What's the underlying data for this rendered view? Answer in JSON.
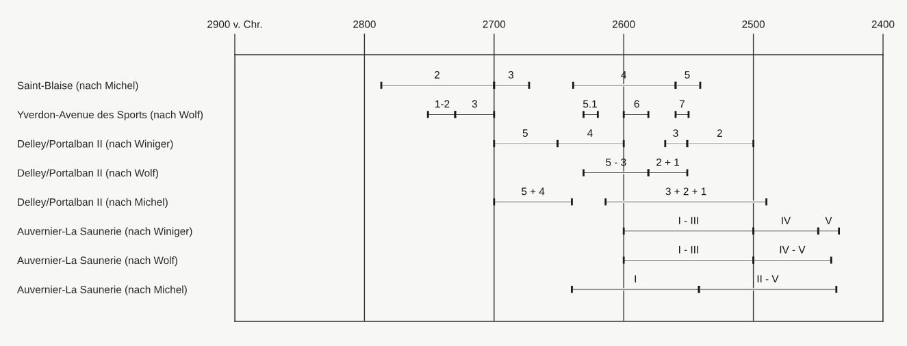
{
  "chart_data": {
    "type": "bar",
    "orientation": "horizontal",
    "categories": [
      "Saint-Blaise (nach Michel)",
      "Yverdon-Avenue des Sports (nach Wolf)",
      "Delley/Portalban II (nach Winiger)",
      "Delley/Portalban II (nach Wolf)",
      "Delley/Portalban II (nach Michel)",
      "Auvernier-La Saunerie (nach Winiger)",
      "Auvernier-La Saunerie (nach Wolf)",
      "Auvernier-La Saunerie (nach Michel)"
    ],
    "series": [
      {
        "color": "#1a1a1a",
        "base": [
          2700,
          2730,
          2651,
          2581,
          2640,
          2500,
          2500,
          2542
        ],
        "values": [
          87,
          21,
          49,
          50,
          60,
          100,
          100,
          98
        ]
      },
      {
        "color": "#1a1a1a",
        "base": [
          2673,
          2700,
          2600,
          2551,
          2490,
          2450,
          2440,
          2436
        ],
        "values": [
          27,
          30,
          51,
          30,
          124,
          50,
          60,
          106
        ]
      },
      {
        "color": "#1a1a1a",
        "base": [
          2560,
          2620,
          2551,
          null,
          null,
          2434,
          null,
          null
        ],
        "values": [
          79,
          11,
          17,
          null,
          null,
          16,
          null,
          null
        ]
      },
      {
        "color": "#1a1a1a",
        "base": [
          2541,
          2581,
          2500,
          null,
          null,
          null,
          null,
          null
        ],
        "values": [
          19,
          19,
          51,
          null,
          null,
          null,
          null,
          null
        ]
      },
      {
        "color": "#1a1a1a",
        "base": [
          null,
          2550,
          null,
          null,
          null,
          null,
          null,
          null
        ],
        "values": [
          null,
          10,
          null,
          null,
          null,
          null,
          null,
          null
        ]
      }
    ],
    "annotations": [
      {
        "text": "2",
        "x": 2744,
        "y": "Saint-Blaise (nach Michel)"
      },
      {
        "text": "3",
        "x": 2687,
        "y": "Saint-Blaise (nach Michel)"
      },
      {
        "text": "4",
        "x": 2600,
        "y": "Saint-Blaise (nach Michel)"
      },
      {
        "text": "5",
        "x": 2551,
        "y": "Saint-Blaise (nach Michel)"
      },
      {
        "text": "1-2",
        "x": 2740,
        "y": "Yverdon-Avenue des Sports (nach Wolf)"
      },
      {
        "text": "3",
        "x": 2715,
        "y": "Yverdon-Avenue des Sports (nach Wolf)"
      },
      {
        "text": "5.1",
        "x": 2626,
        "y": "Yverdon-Avenue des Sports (nach Wolf)"
      },
      {
        "text": "6",
        "x": 2590,
        "y": "Yverdon-Avenue des Sports (nach Wolf)"
      },
      {
        "text": "7",
        "x": 2555,
        "y": "Yverdon-Avenue des Sports (nach Wolf)"
      },
      {
        "text": "5",
        "x": 2676,
        "y": "Delley/Portalban II (nach Winiger)"
      },
      {
        "text": "4",
        "x": 2626,
        "y": "Delley/Portalban II (nach Winiger)"
      },
      {
        "text": "3",
        "x": 2560,
        "y": "Delley/Portalban II (nach Winiger)"
      },
      {
        "text": "2",
        "x": 2526,
        "y": "Delley/Portalban II (nach Winiger)"
      },
      {
        "text": "5 - 3",
        "x": 2606,
        "y": "Delley/Portalban II (nach Wolf)"
      },
      {
        "text": "2 + 1",
        "x": 2566,
        "y": "Delley/Portalban II (nach Wolf)"
      },
      {
        "text": "5 + 4",
        "x": 2670,
        "y": "Delley/Portalban II (nach Michel)"
      },
      {
        "text": "3 + 2 + 1",
        "x": 2552,
        "y": "Delley/Portalban II (nach Michel)"
      },
      {
        "text": "I - III",
        "x": 2550,
        "y": "Auvernier-La Saunerie (nach Winiger)"
      },
      {
        "text": "IV",
        "x": 2475,
        "y": "Auvernier-La Saunerie (nach Winiger)"
      },
      {
        "text": "V",
        "x": 2442,
        "y": "Auvernier-La Saunerie (nach Winiger)"
      },
      {
        "text": "I - III",
        "x": 2550,
        "y": "Auvernier-La Saunerie (nach Wolf)"
      },
      {
        "text": "IV - V",
        "x": 2470,
        "y": "Auvernier-La Saunerie (nach Wolf)"
      },
      {
        "text": "I",
        "x": 2591,
        "y": "Auvernier-La Saunerie (nach Michel)"
      },
      {
        "text": "II - V",
        "x": 2489,
        "y": "Auvernier-La Saunerie (nach Michel)"
      }
    ],
    "xlim": [
      2900,
      2400
    ],
    "xticks": [
      {
        "value": 2900,
        "label": "2900 v. Chr."
      },
      2800,
      2700,
      2600,
      2500,
      2400
    ],
    "grid": "x"
  }
}
